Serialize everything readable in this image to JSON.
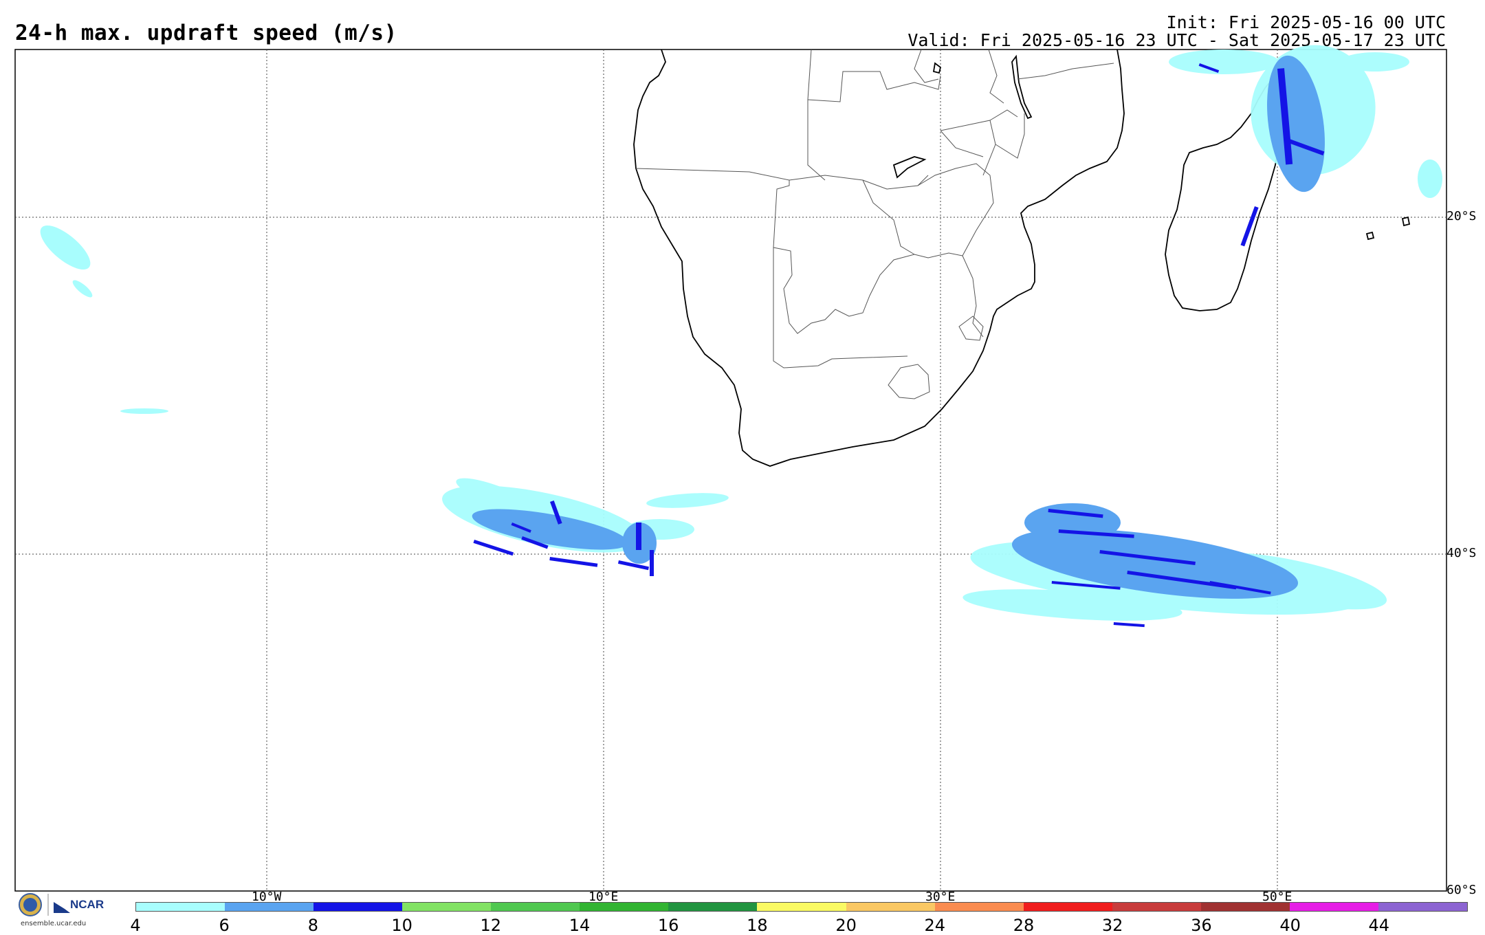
{
  "header": {
    "title": "24-h max. updraft speed (m/s)",
    "init": "Init: Fri 2025-05-16 00 UTC",
    "valid": "Valid: Fri 2025-05-16 23 UTC - Sat 2025-05-17 23 UTC"
  },
  "map": {
    "lat_labels": [
      "20°S",
      "40°S",
      "60°S"
    ],
    "lon_labels": [
      "10°W",
      "10°E",
      "30°E",
      "50°E"
    ]
  },
  "colorbar": {
    "ticks": [
      "4",
      "6",
      "8",
      "10",
      "12",
      "14",
      "16",
      "18",
      "20",
      "24",
      "28",
      "32",
      "36",
      "40",
      "44"
    ],
    "colors": [
      "#a8fdfd",
      "#5aa4f0",
      "#1414e6",
      "#82e264",
      "#50c850",
      "#32b432",
      "#229440",
      "#fafa64",
      "#fac864",
      "#fa8c50",
      "#f01e1e",
      "#c83c3c",
      "#a03232",
      "#e61ee6",
      "#8c64d2"
    ]
  },
  "footer": {
    "brand": "NCAR",
    "url": "ensemble.ucar.edu",
    "nsf_label": "NSF"
  }
}
